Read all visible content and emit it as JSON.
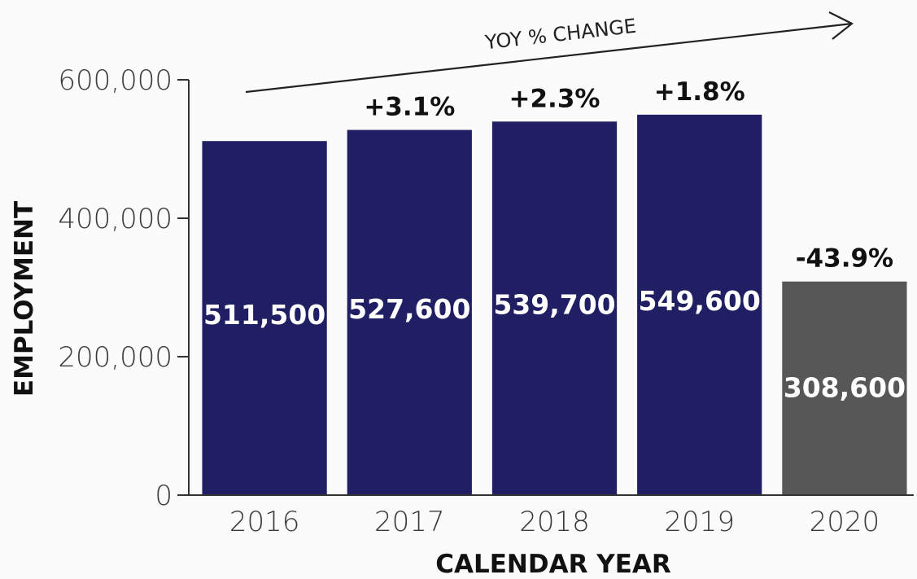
{
  "chart_data": {
    "type": "bar",
    "categories": [
      "2016",
      "2017",
      "2018",
      "2019",
      "2020"
    ],
    "values": [
      511500,
      527600,
      539700,
      549600,
      308600
    ],
    "value_labels": [
      "511,500",
      "527,600",
      "539,700",
      "549,600",
      "308,600"
    ],
    "yoy_change_labels": [
      "",
      "+3.1%",
      "+2.3%",
      "+1.8%",
      "-43.9%"
    ],
    "bar_colors": [
      "#201f63",
      "#201f63",
      "#201f63",
      "#201f63",
      "#575757"
    ],
    "xlabel": "CALENDAR YEAR",
    "ylabel": "EMPLOYMENT",
    "ylim": [
      0,
      600000
    ],
    "yticks": [
      0,
      200000,
      400000,
      600000
    ],
    "ytick_labels": [
      "0",
      "200,000",
      "400,000",
      "600,000"
    ],
    "annotation": "YOY % CHANGE",
    "grid": false,
    "legend": "none"
  }
}
